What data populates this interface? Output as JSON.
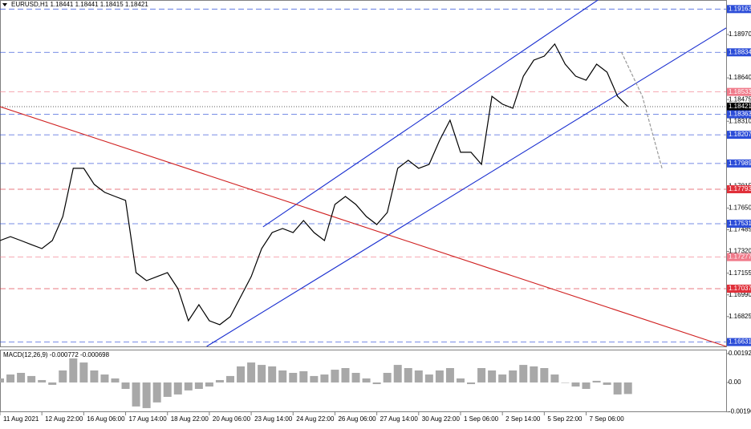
{
  "chart_data": [
    {
      "type": "line",
      "title": "EURUSD,H1  1.18441 1.18441 1.18415 1.18421",
      "color": "#000000",
      "x": [
        0,
        8,
        16,
        24,
        32,
        40,
        48,
        56,
        64,
        72,
        80,
        88,
        96,
        104,
        112,
        120,
        128,
        136,
        144,
        152,
        160,
        168,
        176,
        184,
        192,
        200,
        208,
        216,
        224,
        232,
        240,
        248,
        256,
        264,
        272,
        280,
        288,
        296,
        304,
        312,
        320,
        328,
        336,
        344,
        352,
        360,
        368,
        376,
        384,
        392,
        400,
        408,
        416,
        424,
        432,
        440,
        448,
        456,
        464,
        472,
        480
      ],
      "values": [
        1.17403,
        1.17433,
        1.17403,
        1.17372,
        1.17342,
        1.17403,
        1.17586,
        1.17952,
        1.17952,
        1.1783,
        1.17769,
        1.17738,
        1.17708,
        1.17159,
        1.17098,
        1.17129,
        1.17159,
        1.17037,
        1.16793,
        1.16915,
        1.16793,
        1.16763,
        1.16824,
        1.16976,
        1.17129,
        1.17342,
        1.17464,
        1.17494,
        1.17464,
        1.17555,
        1.17464,
        1.17403,
        1.17677,
        1.17738,
        1.17677,
        1.17586,
        1.17525,
        1.17616,
        1.17952,
        1.18013,
        1.17952,
        1.17982,
        1.18165,
        1.18318,
        1.18074,
        1.18074,
        1.17982,
        1.185,
        1.1844,
        1.18409,
        1.18653,
        1.18775,
        1.18805,
        1.18897,
        1.18744,
        1.18653,
        1.18622,
        1.18744,
        1.18683,
        1.185,
        1.18421
      ],
      "xlim": [
        0,
        555
      ],
      "ylim": [
        1.16598,
        1.19232
      ],
      "xticks": [
        {
          "value": 0,
          "label": "11 Aug 2021"
        },
        {
          "value": 32,
          "label": "12 Aug 22:00"
        },
        {
          "value": 64,
          "label": "16 Aug 06:00"
        },
        {
          "value": 96,
          "label": "17 Aug 14:00"
        },
        {
          "value": 128,
          "label": "18 Aug 22:00"
        },
        {
          "value": 160,
          "label": "20 Aug 06:00"
        },
        {
          "value": 192,
          "label": "23 Aug 14:00"
        },
        {
          "value": 224,
          "label": "24 Aug 22:00"
        },
        {
          "value": 256,
          "label": "26 Aug 06:00"
        },
        {
          "value": 288,
          "label": "27 Aug 14:00"
        },
        {
          "value": 320,
          "label": "30 Aug 22:00"
        },
        {
          "value": 352,
          "label": "1 Sep 06:00"
        },
        {
          "value": 384,
          "label": "2 Sep 14:00"
        },
        {
          "value": 416,
          "label": "5 Sep 22:00"
        },
        {
          "value": 448,
          "label": "7 Sep 06:00"
        }
      ],
      "yticks": [
        {
          "value": 1.1897,
          "label": "1.18970"
        },
        {
          "value": 1.1864,
          "label": "1.18640"
        },
        {
          "value": 1.18475,
          "label": "1.18475"
        },
        {
          "value": 1.1831,
          "label": "1.18310"
        },
        {
          "value": 1.17815,
          "label": "1.17815"
        },
        {
          "value": 1.1765,
          "label": "1.17650"
        },
        {
          "value": 1.17485,
          "label": "1.17485"
        },
        {
          "value": 1.1732,
          "label": "1.17320"
        },
        {
          "value": 1.17155,
          "label": "1.17155"
        },
        {
          "value": 1.1699,
          "label": "1.16990"
        },
        {
          "value": 1.16825,
          "label": "1.16825"
        }
      ],
      "hlines": [
        {
          "value": 1.19163,
          "color": "#2b4cd8"
        },
        {
          "value": 1.18834,
          "color": "#2b4cd8"
        },
        {
          "value": 1.18533,
          "color": "#f07a8a"
        },
        {
          "value": 1.18421,
          "color": "#000000"
        },
        {
          "value": 1.18363,
          "color": "#2b4cd8"
        },
        {
          "value": 1.18207,
          "color": "#2b4cd8"
        },
        {
          "value": 1.17989,
          "color": "#2b4cd8"
        },
        {
          "value": 1.17793,
          "color": "#e0303a"
        },
        {
          "value": 1.17531,
          "color": "#2b4cd8"
        },
        {
          "value": 1.17277,
          "color": "#f07a8a"
        },
        {
          "value": 1.17037,
          "color": "#e0303a"
        },
        {
          "value": 1.16631,
          "color": "#2b4cd8"
        }
      ],
      "trendlines": [
        {
          "color": "#1a2fd0",
          "x": [
            158,
            555
          ],
          "y": [
            1.16598,
            1.19019
          ]
        },
        {
          "color": "#1a2fd0",
          "x": [
            201,
            457
          ],
          "y": [
            1.17507,
            1.19232
          ]
        },
        {
          "color": "#d02020",
          "x": [
            0,
            555
          ],
          "y": [
            1.18421,
            1.16598
          ]
        },
        {
          "color": "#999999",
          "x": [
            475,
            491,
            506
          ],
          "y": [
            1.18836,
            1.185,
            1.17952
          ]
        }
      ]
    },
    {
      "type": "bar",
      "title": "MACD(12,26,9) -0.000772 -0.000698",
      "color": "#a8a8a8",
      "x": [
        0,
        8,
        16,
        24,
        32,
        40,
        48,
        56,
        64,
        72,
        80,
        88,
        96,
        104,
        112,
        120,
        128,
        136,
        144,
        152,
        160,
        168,
        176,
        184,
        192,
        200,
        208,
        216,
        224,
        232,
        240,
        248,
        256,
        264,
        272,
        280,
        288,
        296,
        304,
        312,
        320,
        328,
        336,
        344,
        352,
        360,
        368,
        376,
        384,
        392,
        400,
        408,
        416,
        424,
        432,
        440,
        448,
        456,
        464,
        472,
        480
      ],
      "values": [
        0.00027,
        0.00053,
        0.00064,
        0.00043,
        0.00016,
        -0.00016,
        0.0008,
        0.0016,
        0.00133,
        0.0008,
        0.00053,
        0.00027,
        -0.00043,
        -0.0016,
        -0.00171,
        -0.00133,
        -0.00096,
        -0.0008,
        -0.00053,
        -0.00043,
        -0.00027,
        0.00016,
        0.00043,
        0.00107,
        0.00133,
        0.00117,
        0.00107,
        0.0008,
        0.00064,
        0.00075,
        0.00043,
        0.00053,
        0.00085,
        0.00096,
        0.00064,
        0.00027,
        -0.00011,
        0.00064,
        0.00117,
        0.00096,
        0.0008,
        0.00053,
        0.0008,
        0.00096,
        0.00027,
        -0.00011,
        0.00096,
        0.0008,
        0.00053,
        0.0008,
        0.00117,
        0.00107,
        0.00096,
        0.00053,
        0,
        -0.00027,
        -0.00043,
        0.00011,
        -0.00016,
        -0.0008,
        -0.00077
      ],
      "xlim": [
        0,
        555
      ],
      "ylim": [
        -0.00198,
        0.00219
      ],
      "yticks": [
        0.001922,
        {
          "value": 0,
          "label": "0.00"
        },
        -0.00196
      ]
    }
  ]
}
